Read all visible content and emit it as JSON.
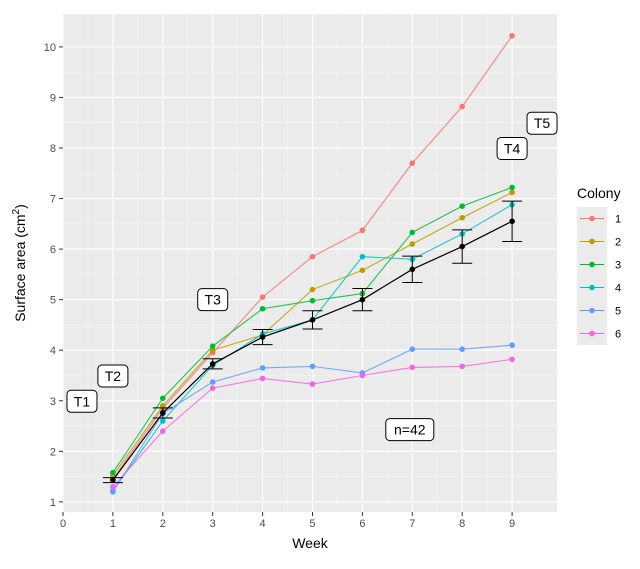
{
  "chart_data": {
    "type": "line",
    "xlabel": "Week",
    "ylabel": "Surface area (cm",
    "ylabel_sup": "2",
    "ylabel_end": ")",
    "xlim": [
      0,
      9.9
    ],
    "ylim": [
      0.8,
      10.65
    ],
    "x_ticks": [
      0,
      1,
      2,
      3,
      4,
      5,
      6,
      7,
      8,
      9
    ],
    "y_ticks": [
      1,
      2,
      3,
      4,
      5,
      6,
      7,
      8,
      9,
      10
    ],
    "grid": true,
    "legend": {
      "title": "Colony",
      "placement": "right",
      "labels": [
        "1",
        "2",
        "3",
        "4",
        "5",
        "6"
      ]
    },
    "series": [
      {
        "name": "1",
        "color": "#F8766D",
        "x": [
          1,
          2,
          3,
          4,
          5,
          6,
          7,
          8,
          9
        ],
        "y": [
          1.45,
          2.85,
          3.95,
          5.05,
          5.85,
          6.37,
          7.7,
          8.82,
          10.22
        ]
      },
      {
        "name": "2",
        "color": "#B79F00",
        "x": [
          1,
          2,
          3,
          4,
          5,
          6,
          7,
          8,
          9
        ],
        "y": [
          1.52,
          2.9,
          4.0,
          4.3,
          5.2,
          5.58,
          6.1,
          6.62,
          7.12
        ]
      },
      {
        "name": "3",
        "color": "#00BA38",
        "x": [
          1,
          2,
          3,
          4,
          5,
          6,
          7,
          8,
          9
        ],
        "y": [
          1.58,
          3.05,
          4.08,
          4.82,
          4.98,
          5.12,
          6.33,
          6.85,
          7.22
        ]
      },
      {
        "name": "4",
        "color": "#00BFC4",
        "x": [
          1,
          2,
          3,
          4,
          5,
          6,
          7,
          8,
          9
        ],
        "y": [
          1.22,
          2.6,
          3.7,
          4.32,
          4.6,
          5.85,
          5.8,
          6.3,
          6.88
        ]
      },
      {
        "name": "5",
        "color": "#619CFF",
        "x": [
          1,
          2,
          3,
          4,
          5,
          6,
          7,
          8,
          9
        ],
        "y": [
          1.2,
          2.75,
          3.37,
          3.65,
          3.68,
          3.55,
          4.02,
          4.02,
          4.1
        ]
      },
      {
        "name": "6",
        "color": "#F564E3",
        "x": [
          1,
          2,
          3,
          4,
          5,
          6,
          7,
          8,
          9
        ],
        "y": [
          1.3,
          2.4,
          3.25,
          3.44,
          3.33,
          3.5,
          3.66,
          3.68,
          3.82
        ]
      }
    ],
    "mean_series": {
      "color": "#000000",
      "x": [
        1,
        2,
        3,
        4,
        5,
        6,
        7,
        8,
        9
      ],
      "y": [
        1.43,
        2.76,
        3.73,
        4.26,
        4.6,
        5.0,
        5.6,
        6.05,
        6.55
      ],
      "err": [
        0.05,
        0.1,
        0.1,
        0.15,
        0.18,
        0.22,
        0.26,
        0.33,
        0.4
      ]
    },
    "annotations": [
      {
        "text": "T1",
        "x": 0.38,
        "y": 2.99
      },
      {
        "text": "T2",
        "x": 1.0,
        "y": 3.49
      },
      {
        "text": "T3",
        "x": 3.0,
        "y": 5.0
      },
      {
        "text": "T4",
        "x": 9.0,
        "y": 7.99
      },
      {
        "text": "T5",
        "x": 9.6,
        "y": 8.49
      },
      {
        "text": "n=42",
        "x": 6.95,
        "y": 2.43
      }
    ]
  }
}
